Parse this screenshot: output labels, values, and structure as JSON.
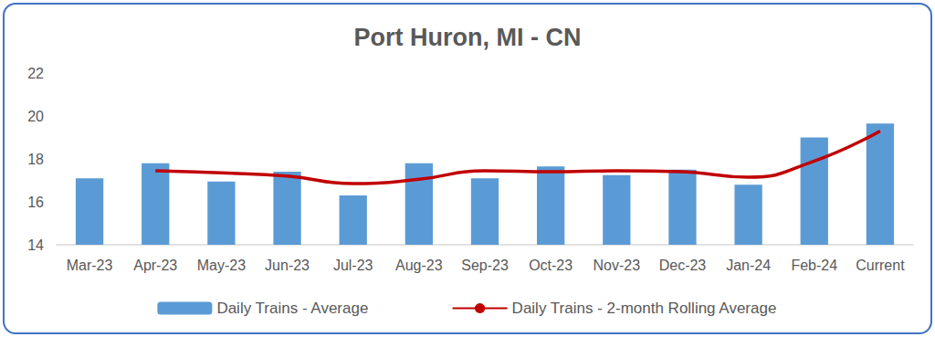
{
  "chart_data": {
    "type": "bar",
    "title": "Port Huron, MI - CN",
    "categories": [
      "Mar-23",
      "Apr-23",
      "May-23",
      "Jun-23",
      "Jul-23",
      "Aug-23",
      "Sep-23",
      "Oct-23",
      "Nov-23",
      "Dec-23",
      "Jan-24",
      "Feb-24",
      "Current"
    ],
    "series": [
      {
        "name": "Daily Trains - Average",
        "type": "bar",
        "color": "#5b9bd5",
        "values": [
          17.1,
          17.8,
          16.95,
          17.4,
          16.3,
          17.8,
          17.1,
          17.65,
          17.25,
          17.5,
          16.8,
          19.0,
          19.65
        ]
      },
      {
        "name": "Daily Trains - 2-month Rolling Average",
        "type": "line",
        "color": "#c00000",
        "marker": "none",
        "values": [
          null,
          17.45,
          17.35,
          17.2,
          16.85,
          17.05,
          17.45,
          17.4,
          17.45,
          17.4,
          17.15,
          17.9,
          19.3
        ]
      }
    ],
    "ylim": [
      14,
      22
    ],
    "yticks": [
      14,
      16,
      18,
      20,
      22
    ],
    "grid": false,
    "legend": "bottom"
  }
}
